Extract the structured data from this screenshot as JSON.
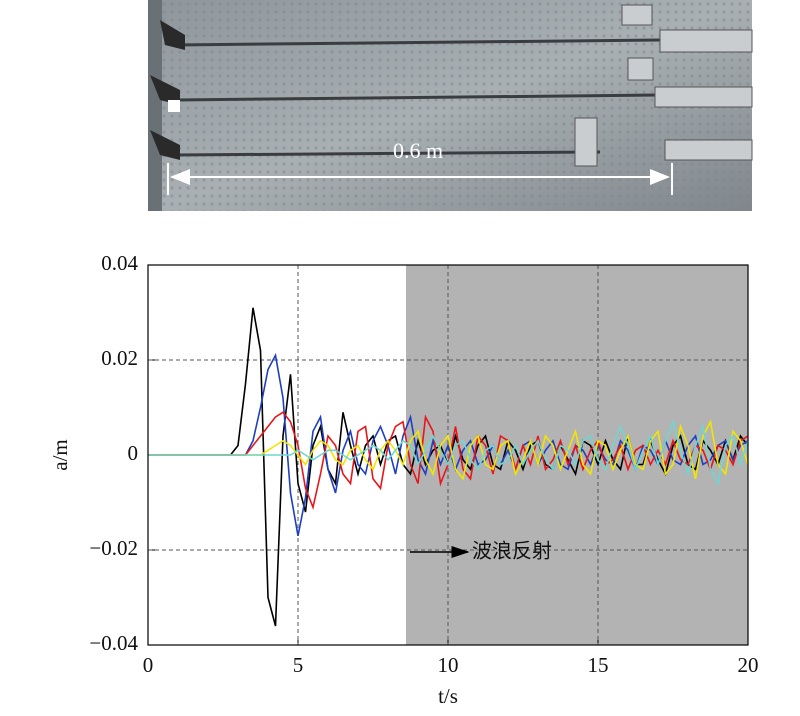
{
  "photo": {
    "label": "0.6 m"
  },
  "chart_data": {
    "type": "line",
    "xlabel": "t/s",
    "ylabel": "a/m",
    "annotation": "波浪反射",
    "highlight_xrange": [
      8.6,
      20
    ],
    "xlim": [
      0,
      20
    ],
    "xticks": [
      0,
      5,
      10,
      15,
      20
    ],
    "ylim": [
      -0.04,
      0.04
    ],
    "yticks": [
      {
        "value": -0.04,
        "label": "−0.04"
      },
      {
        "value": -0.02,
        "label": "−0.02"
      },
      0,
      0.02,
      0.04
    ],
    "grid": true,
    "x": [
      0,
      0.25,
      0.5,
      0.75,
      1,
      1.25,
      1.5,
      1.75,
      2,
      2.25,
      2.5,
      2.75,
      3,
      3.25,
      3.5,
      3.75,
      4,
      4.25,
      4.5,
      4.75,
      5,
      5.25,
      5.5,
      5.75,
      6,
      6.25,
      6.5,
      6.75,
      7,
      7.25,
      7.5,
      7.75,
      8,
      8.25,
      8.5,
      8.75,
      9,
      9.25,
      9.5,
      9.75,
      10,
      10.25,
      10.5,
      10.75,
      11,
      11.25,
      11.5,
      11.75,
      12,
      12.25,
      12.5,
      12.75,
      13,
      13.25,
      13.5,
      13.75,
      14,
      14.25,
      14.5,
      14.75,
      15,
      15.25,
      15.5,
      15.75,
      16,
      16.25,
      16.5,
      16.75,
      17,
      17.25,
      17.5,
      17.75,
      18,
      18.25,
      18.5,
      18.75,
      19,
      19.25,
      19.5,
      19.75,
      20
    ],
    "series": [
      {
        "color": "#000000",
        "values": [
          0,
          0,
          0,
          0,
          0,
          0,
          0,
          0,
          0,
          0,
          0,
          0,
          0.002,
          0.015,
          0.031,
          0.022,
          -0.03,
          -0.036,
          0.004,
          0.017,
          -0.006,
          -0.012,
          0.002,
          0.006,
          -0.003,
          -0.006,
          0.009,
          0.002,
          -0.004,
          0.002,
          0.004,
          -0.002,
          0.003,
          0.004,
          -0.002,
          -0.004,
          0.003,
          -0.002,
          0.001,
          0.002,
          -0.002,
          0.004,
          -0.001,
          -0.003,
          0.002,
          0.004,
          -0.002,
          -0.003,
          0.003,
          0.001,
          -0.003,
          0.002,
          0.003,
          -0.002,
          -0.003,
          0.002,
          -0.001,
          -0.004,
          0.003,
          0.002,
          -0.002,
          0.003,
          -0.001,
          -0.003,
          0.004,
          -0.002,
          -0.002,
          0.003,
          -0.001,
          -0.004,
          0.002,
          0.004,
          -0.002,
          -0.003,
          0.003,
          0.001,
          -0.002,
          0.003,
          -0.001,
          0.004,
          0.002
        ]
      },
      {
        "color": "#1f3fbf",
        "values": [
          0,
          0,
          0,
          0,
          0,
          0,
          0,
          0,
          0,
          0,
          0,
          0,
          0,
          0,
          0.003,
          0.01,
          0.018,
          0.021,
          0.012,
          -0.008,
          -0.017,
          -0.009,
          0.005,
          0.008,
          -0.003,
          -0.008,
          0.001,
          0.005,
          -0.002,
          -0.004,
          0.003,
          0.006,
          0.002,
          -0.004,
          0.004,
          0.008,
          -0.001,
          -0.004,
          0.003,
          -0.002,
          0.002,
          -0.003,
          0.001,
          0.003,
          -0.002,
          -0.001,
          0.002,
          -0.002,
          0.001,
          -0.003,
          0.002,
          0.003,
          -0.002,
          0.001,
          0.003,
          -0.002,
          -0.003,
          0.002,
          0.001,
          -0.002,
          0.002,
          -0.001,
          -0.002,
          0.003,
          0.001,
          -0.003,
          0.002,
          0.001,
          -0.002,
          0.003,
          -0.001,
          -0.002,
          0.002,
          0.004,
          -0.002,
          -0.001,
          0.002,
          0.003,
          -0.001,
          0.002,
          0.003
        ]
      },
      {
        "color": "#e8161b",
        "values": [
          0,
          0,
          0,
          0,
          0,
          0,
          0,
          0,
          0,
          0,
          0,
          0,
          0,
          0,
          0.002,
          0.004,
          0.006,
          0.008,
          0.009,
          0.007,
          0.002,
          -0.007,
          -0.011,
          -0.004,
          0.004,
          0.002,
          -0.004,
          -0.006,
          0.005,
          0.006,
          -0.005,
          -0.007,
          0.002,
          0.006,
          0.007,
          -0.002,
          -0.006,
          0.008,
          0.005,
          -0.006,
          -0.002,
          0.006,
          -0.003,
          -0.005,
          0.004,
          0.002,
          -0.004,
          0.004,
          0.003,
          -0.003,
          0.002,
          -0.002,
          0.004,
          -0.003,
          -0.001,
          0.003,
          -0.002,
          0.002,
          -0.003,
          0.001,
          0.003,
          -0.002,
          -0.001,
          0.002,
          -0.003,
          0.001,
          0.002,
          -0.002,
          0.001,
          -0.002,
          0.003,
          -0.001,
          -0.002,
          0.002,
          0.001,
          -0.003,
          0.002,
          0.001,
          -0.002,
          0.003,
          0.004
        ]
      },
      {
        "color": "#f2e600",
        "values": [
          0,
          0,
          0,
          0,
          0,
          0,
          0,
          0,
          0,
          0,
          0,
          0,
          0,
          0,
          0,
          0,
          0.001,
          0.002,
          0.003,
          0.002,
          0,
          -0.002,
          0.001,
          0.003,
          0.002,
          -0.001,
          -0.002,
          0.001,
          0.002,
          -0.001,
          -0.003,
          0.001,
          0.003,
          0.001,
          -0.002,
          0.003,
          0.005,
          -0.001,
          -0.004,
          0.002,
          0.004,
          -0.003,
          -0.005,
          0.002,
          0.004,
          -0.002,
          -0.003,
          0.002,
          0.003,
          -0.004,
          -0.001,
          0.003,
          -0.002,
          0.004,
          0.002,
          -0.003,
          0.001,
          0.005,
          -0.002,
          -0.004,
          0.003,
          0.002,
          -0.003,
          0.001,
          0.004,
          -0.002,
          -0.003,
          0.003,
          0.005,
          -0.004,
          -0.002,
          0.006,
          0.002,
          -0.005,
          0.004,
          0.007,
          -0.002,
          -0.004,
          0.005,
          0.003,
          -0.002
        ]
      },
      {
        "color": "#6fd6d0",
        "values": [
          0,
          0,
          0,
          0,
          0,
          0,
          0,
          0,
          0,
          0,
          0,
          0,
          0,
          0,
          0,
          0,
          0,
          0,
          0,
          0,
          0.001,
          0,
          -0.001,
          0,
          0.001,
          0.001,
          0,
          -0.001,
          0,
          0.001,
          0.002,
          0.001,
          -0.001,
          0.001,
          0.003,
          0.002,
          -0.002,
          0.001,
          0.004,
          0.001,
          -0.002,
          0.002,
          0.003,
          -0.001,
          -0.003,
          0.001,
          0.002,
          -0.002,
          -0.001,
          0.002,
          -0.002,
          0.001,
          0.003,
          -0.001,
          -0.003,
          0.002,
          0.001,
          -0.002,
          0.003,
          0.004,
          -0.001,
          -0.003,
          0.002,
          0.006,
          0.002,
          -0.003,
          0.001,
          0.004,
          -0.002,
          0.003,
          0.007,
          0.001,
          -0.004,
          0.002,
          0.006,
          -0.003,
          -0.006,
          0.002,
          0.004,
          -0.002,
          0.003
        ]
      }
    ]
  }
}
